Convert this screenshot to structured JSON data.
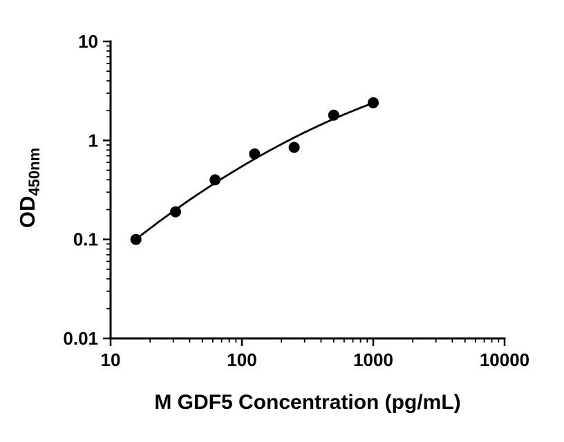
{
  "figure": {
    "background": "#ffffff"
  },
  "chart_data": {
    "type": "scatter",
    "title": "",
    "xlabel": "M GDF5 Concentration (pg/mL)",
    "ylabel_main": "OD",
    "ylabel_sub": "450nm",
    "x_scale": "log",
    "y_scale": "log",
    "xlim": [
      10,
      10000
    ],
    "ylim": [
      0.01,
      10
    ],
    "x_tick_labels": [
      "10",
      "100",
      "1000",
      "10000"
    ],
    "y_tick_labels": [
      "0.01",
      "0.1",
      "1",
      "10"
    ],
    "grid": false,
    "legend_position": "none",
    "has_fit_curve": true,
    "x": [
      15.6,
      31.25,
      62.5,
      125,
      250,
      500,
      1000
    ],
    "y": [
      0.1,
      0.19,
      0.4,
      0.73,
      0.85,
      1.8,
      2.4
    ],
    "marker": "circle",
    "marker_color": "#000000",
    "curve_color": "#000000",
    "axis_color": "#000000"
  }
}
